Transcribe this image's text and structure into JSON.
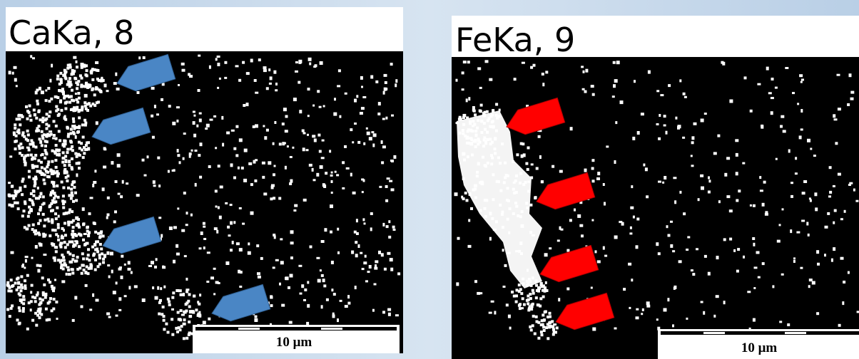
{
  "panels": [
    {
      "title": "CaKa, 8",
      "scale_label": "10 μm"
    },
    {
      "title": "FeKa, 9",
      "scale_label": "10 μm"
    }
  ]
}
